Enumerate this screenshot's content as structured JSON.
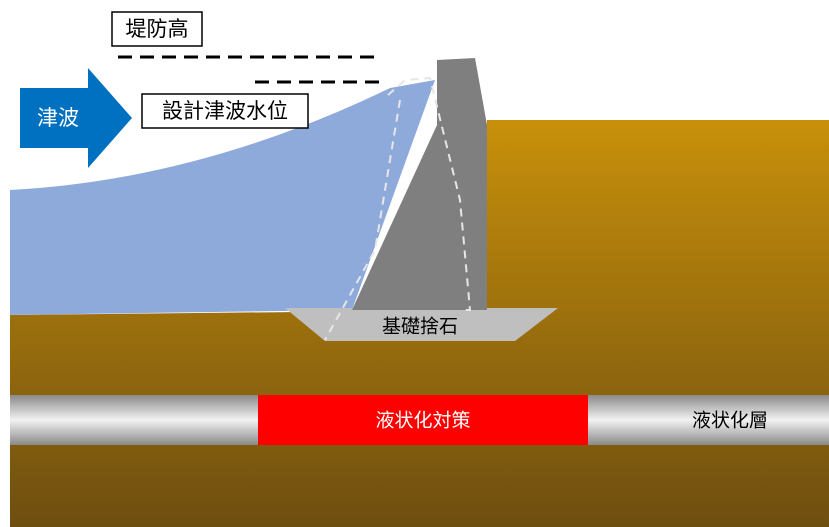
{
  "labels": {
    "dike_height": "堤防高",
    "design_water_level": "設計津波水位",
    "tsunami": "津波",
    "foundation_rubble": "基礎捨石",
    "countermeasure": "液状化対策",
    "liquefaction_layer": "液状化層"
  }
}
